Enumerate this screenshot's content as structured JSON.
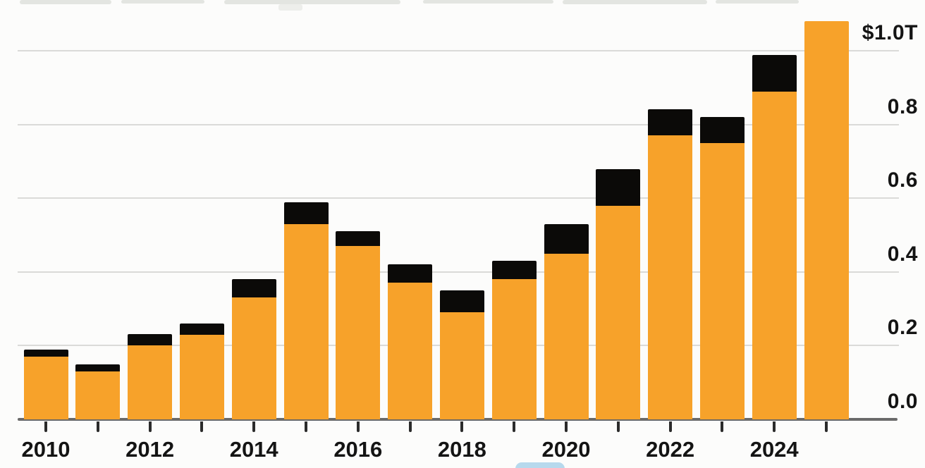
{
  "chart_data": {
    "type": "bar",
    "stacked": true,
    "categories": [
      "2010",
      "2011",
      "2012",
      "2013",
      "2014",
      "2015",
      "2016",
      "2017",
      "2018",
      "2019",
      "2020",
      "2021",
      "2022",
      "2023",
      "2024",
      "2025"
    ],
    "series": [
      {
        "name": "orange",
        "color": "#F7A22A",
        "values": [
          0.17,
          0.13,
          0.2,
          0.23,
          0.33,
          0.53,
          0.47,
          0.37,
          0.29,
          0.38,
          0.45,
          0.58,
          0.77,
          0.75,
          0.89,
          1.08
        ]
      },
      {
        "name": "black",
        "color": "#0B0A08",
        "values": [
          0.02,
          0.02,
          0.03,
          0.03,
          0.05,
          0.06,
          0.04,
          0.05,
          0.06,
          0.05,
          0.08,
          0.1,
          0.07,
          0.07,
          0.1,
          0.0
        ]
      }
    ],
    "title": "",
    "xlabel": "",
    "ylabel": "",
    "unit": "$T",
    "ylim": [
      0.0,
      1.08
    ],
    "grid": true,
    "legend_position": "none",
    "y_axis": {
      "side": "right",
      "tick_labels": [
        "$1.0T",
        "0.8",
        "0.6",
        "0.4",
        "0.2",
        "0.0"
      ],
      "tick_values": [
        1.0,
        0.8,
        0.6,
        0.4,
        0.2,
        0.0
      ]
    },
    "x_axis": {
      "shown_tick_labels": [
        "2010",
        "2012",
        "2014",
        "2016",
        "2018",
        "2020",
        "2022",
        "2024"
      ],
      "tick_marks_every_year": true
    }
  },
  "colors": {
    "background": "#FCFCFB",
    "gridline": "#DADAD8",
    "axis_line": "#6A6A6A",
    "tick_mark": "#2B2B2B",
    "label_text": "#141414",
    "bar_orange": "#F7A22A",
    "bar_black": "#0B0A08",
    "bottom_cropped_element": "#B7D9ED",
    "title_remnant": "#C6CAC2"
  }
}
